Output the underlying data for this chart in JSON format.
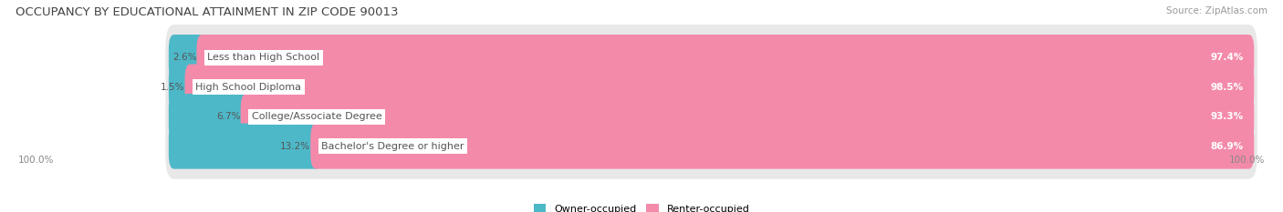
{
  "title": "OCCUPANCY BY EDUCATIONAL ATTAINMENT IN ZIP CODE 90013",
  "source": "Source: ZipAtlas.com",
  "categories": [
    "Less than High School",
    "High School Diploma",
    "College/Associate Degree",
    "Bachelor's Degree or higher"
  ],
  "owner_pct": [
    2.6,
    1.5,
    6.7,
    13.2
  ],
  "renter_pct": [
    97.4,
    98.5,
    93.3,
    86.9
  ],
  "owner_color": "#4db8c8",
  "renter_color": "#f48aaa",
  "bar_bg_color": "#e8e8e8",
  "owner_label": "Owner-occupied",
  "renter_label": "Renter-occupied",
  "left_axis_label": "100.0%",
  "right_axis_label": "100.0%",
  "title_fontsize": 9.5,
  "source_fontsize": 7.5,
  "label_fontsize": 8.0,
  "pct_fontsize": 7.5,
  "bar_height": 0.62,
  "figsize": [
    14.06,
    2.33
  ],
  "dpi": 100
}
